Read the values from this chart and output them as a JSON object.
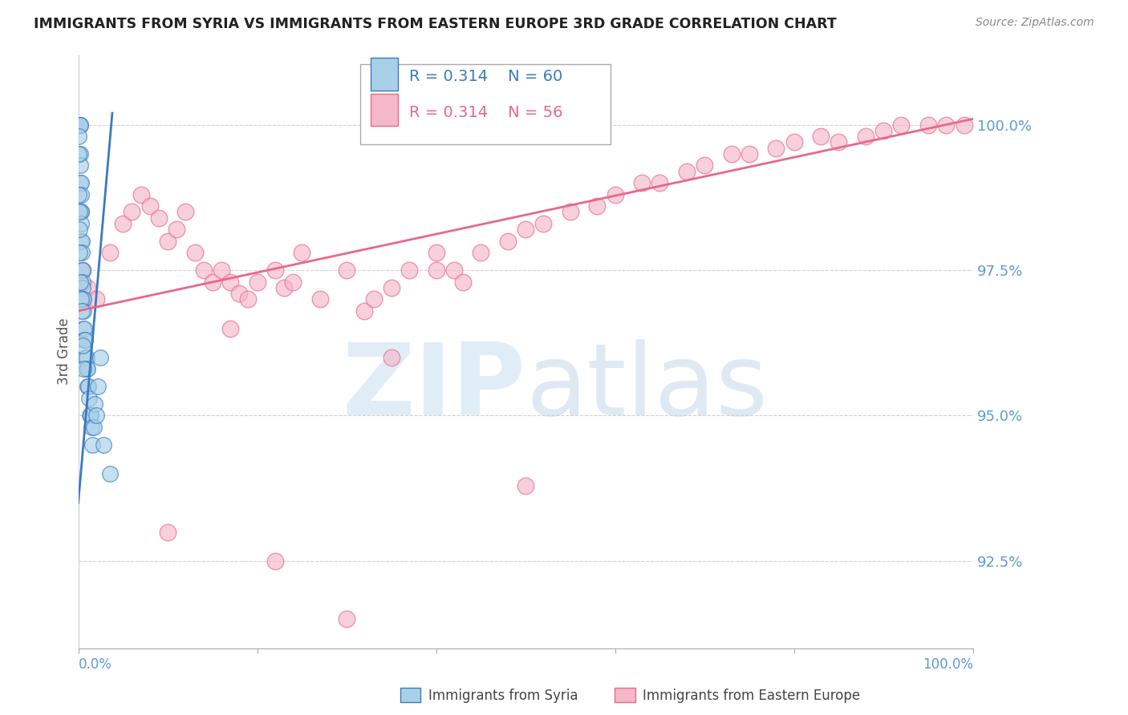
{
  "title": "IMMIGRANTS FROM SYRIA VS IMMIGRANTS FROM EASTERN EUROPE 3RD GRADE CORRELATION CHART",
  "source": "Source: ZipAtlas.com",
  "ylabel": "3rd Grade",
  "legend_label1": "Immigrants from Syria",
  "legend_label2": "Immigrants from Eastern Europe",
  "legend_R1": "R = 0.314",
  "legend_N1": "N = 60",
  "legend_R2": "R = 0.314",
  "legend_N2": "N = 56",
  "color_syria": "#a8d0e8",
  "color_eastern": "#f4b8c8",
  "color_syria_line": "#3a7abf",
  "color_eastern_line": "#e8688a",
  "color_axis_labels": "#5b9bd5",
  "xlim": [
    0.0,
    100.0
  ],
  "ylim": [
    91.0,
    101.2
  ],
  "yticks": [
    92.5,
    95.0,
    97.5,
    100.0
  ],
  "syria_x": [
    0.05,
    0.05,
    0.1,
    0.1,
    0.1,
    0.15,
    0.15,
    0.2,
    0.2,
    0.2,
    0.25,
    0.25,
    0.3,
    0.3,
    0.3,
    0.35,
    0.35,
    0.35,
    0.4,
    0.4,
    0.4,
    0.5,
    0.5,
    0.5,
    0.5,
    0.6,
    0.6,
    0.6,
    0.7,
    0.7,
    0.8,
    0.8,
    0.9,
    0.9,
    1.0,
    1.0,
    1.1,
    1.2,
    1.3,
    1.4,
    1.5,
    1.6,
    1.7,
    1.8,
    2.0,
    2.2,
    2.5,
    0.05,
    0.05,
    0.05,
    0.1,
    0.1,
    0.15,
    0.2,
    0.3,
    0.4,
    0.5,
    0.6,
    2.8,
    3.5
  ],
  "syria_y": [
    100.0,
    100.0,
    100.0,
    100.0,
    100.0,
    100.0,
    100.0,
    100.0,
    100.0,
    99.5,
    99.3,
    99.0,
    99.0,
    98.8,
    98.5,
    98.5,
    98.3,
    98.0,
    98.0,
    97.8,
    97.5,
    97.5,
    97.3,
    97.2,
    97.0,
    97.0,
    96.8,
    96.5,
    96.5,
    96.3,
    96.3,
    96.0,
    96.0,
    95.8,
    95.8,
    95.5,
    95.5,
    95.3,
    95.0,
    95.0,
    94.8,
    94.5,
    94.8,
    95.2,
    95.0,
    95.5,
    96.0,
    99.8,
    99.5,
    98.8,
    98.5,
    97.8,
    98.2,
    97.3,
    97.0,
    96.8,
    96.2,
    95.8,
    94.5,
    94.0
  ],
  "eastern_x": [
    0.5,
    1.0,
    2.0,
    3.5,
    5.0,
    7.0,
    8.0,
    9.0,
    10.0,
    11.0,
    12.0,
    13.0,
    14.0,
    15.0,
    16.0,
    17.0,
    18.0,
    19.0,
    20.0,
    22.0,
    23.0,
    25.0,
    27.0,
    30.0,
    32.0,
    35.0,
    37.0,
    40.0,
    42.0,
    45.0,
    48.0,
    50.0,
    52.0,
    55.0,
    58.0,
    60.0,
    63.0,
    65.0,
    68.0,
    70.0,
    73.0,
    75.0,
    78.0,
    80.0,
    83.0,
    85.0,
    88.0,
    90.0,
    92.0,
    95.0,
    97.0,
    99.0,
    6.0,
    24.0,
    33.0,
    43.0
  ],
  "eastern_y": [
    97.5,
    97.2,
    97.0,
    97.8,
    98.3,
    98.8,
    98.6,
    98.4,
    98.0,
    98.2,
    98.5,
    97.8,
    97.5,
    97.3,
    97.5,
    97.3,
    97.1,
    97.0,
    97.3,
    97.5,
    97.2,
    97.8,
    97.0,
    97.5,
    96.8,
    97.2,
    97.5,
    97.8,
    97.5,
    97.8,
    98.0,
    98.2,
    98.3,
    98.5,
    98.6,
    98.8,
    99.0,
    99.0,
    99.2,
    99.3,
    99.5,
    99.5,
    99.6,
    99.7,
    99.8,
    99.7,
    99.8,
    99.9,
    100.0,
    100.0,
    100.0,
    100.0,
    98.5,
    97.3,
    97.0,
    97.3
  ],
  "eastern_outlier_x": [
    10.0,
    17.0,
    22.0,
    30.0,
    35.0,
    40.0,
    50.0
  ],
  "eastern_outlier_y": [
    93.0,
    96.5,
    92.5,
    91.5,
    96.0,
    97.5,
    93.8
  ],
  "watermark_zip": "ZIP",
  "watermark_atlas": "atlas"
}
